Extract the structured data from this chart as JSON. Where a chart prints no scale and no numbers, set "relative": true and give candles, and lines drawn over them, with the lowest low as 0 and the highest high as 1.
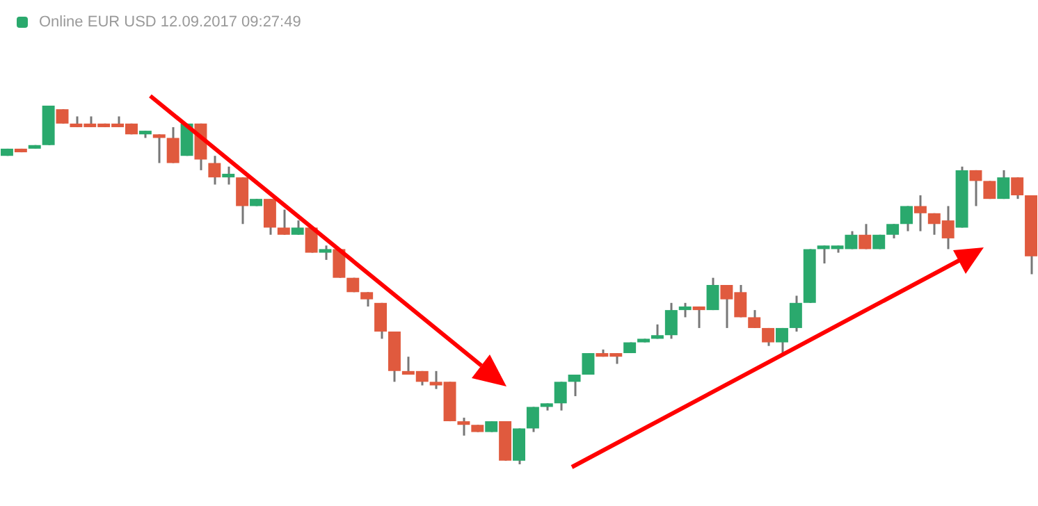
{
  "chart_data": {
    "type": "candlestick",
    "title": "Online EUR USD 12.09.2017 09:27:49",
    "relative": true,
    "categories": [
      null,
      null,
      null,
      null,
      null,
      null,
      null,
      null,
      null,
      null,
      null,
      null,
      null,
      null,
      null,
      null,
      null,
      null,
      null,
      null,
      null,
      null,
      null,
      null,
      null,
      null,
      null,
      null,
      null,
      null,
      null,
      null,
      null,
      null,
      null,
      null,
      null,
      null,
      null,
      null,
      null,
      null,
      null,
      null,
      null,
      null,
      null,
      null,
      null,
      null,
      null,
      null,
      null,
      null,
      null,
      null,
      null,
      null,
      null,
      null,
      null,
      null,
      null,
      null,
      null,
      null,
      null,
      null,
      null,
      null,
      null,
      null,
      null,
      null,
      null
    ],
    "ohlc": [
      [
        0.86,
        0.88,
        0.86,
        0.88
      ],
      [
        0.88,
        0.88,
        0.87,
        0.87
      ],
      [
        0.88,
        0.89,
        0.88,
        0.89
      ],
      [
        0.89,
        1,
        0.89,
        1
      ],
      [
        0.99,
        0.99,
        0.95,
        0.95
      ],
      [
        0.95,
        0.97,
        0.94,
        0.94
      ],
      [
        0.95,
        0.97,
        0.94,
        0.94
      ],
      [
        0.95,
        0.95,
        0.94,
        0.94
      ],
      [
        0.95,
        0.97,
        0.94,
        0.94
      ],
      [
        0.95,
        0.95,
        0.92,
        0.92
      ],
      [
        0.92,
        0.93,
        0.91,
        0.93
      ],
      [
        0.92,
        0.92,
        0.84,
        0.91
      ],
      [
        0.91,
        0.94,
        0.84,
        0.84
      ],
      [
        0.86,
        0.95,
        0.86,
        0.95
      ],
      [
        0.95,
        0.95,
        0.82,
        0.85
      ],
      [
        0.84,
        0.86,
        0.78,
        0.8
      ],
      [
        0.8,
        0.83,
        0.78,
        0.81
      ],
      [
        0.8,
        0.8,
        0.67,
        0.72
      ],
      [
        0.72,
        0.74,
        0.72,
        0.74
      ],
      [
        0.74,
        0.74,
        0.64,
        0.66
      ],
      [
        0.66,
        0.71,
        0.64,
        0.64
      ],
      [
        0.64,
        0.68,
        0.64,
        0.66
      ],
      [
        0.66,
        0.66,
        0.59,
        0.59
      ],
      [
        0.59,
        0.61,
        0.57,
        0.6
      ],
      [
        0.6,
        0.6,
        0.52,
        0.52
      ],
      [
        0.52,
        0.52,
        0.48,
        0.48
      ],
      [
        0.48,
        0.48,
        0.44,
        0.46
      ],
      [
        0.45,
        0.45,
        0.35,
        0.37
      ],
      [
        0.37,
        0.37,
        0.23,
        0.26
      ],
      [
        0.26,
        0.3,
        0.25,
        0.25
      ],
      [
        0.26,
        0.26,
        0.22,
        0.23
      ],
      [
        0.23,
        0.26,
        0.21,
        0.22
      ],
      [
        0.23,
        0.23,
        0.12,
        0.12
      ],
      [
        0.12,
        0.13,
        0.08,
        0.11
      ],
      [
        0.11,
        0.11,
        0.09,
        0.09
      ],
      [
        0.09,
        0.12,
        0.09,
        0.12
      ],
      [
        0.12,
        0.12,
        0.01,
        0.01
      ],
      [
        0.01,
        0.1,
        0,
        0.1
      ],
      [
        0.1,
        0.16,
        0.09,
        0.16
      ],
      [
        0.16,
        0.17,
        0.15,
        0.17
      ],
      [
        0.17,
        0.23,
        0.15,
        0.23
      ],
      [
        0.23,
        0.25,
        0.19,
        0.25
      ],
      [
        0.25,
        0.31,
        0.25,
        0.31
      ],
      [
        0.31,
        0.32,
        0.3,
        0.3
      ],
      [
        0.31,
        0.31,
        0.28,
        0.3
      ],
      [
        0.31,
        0.34,
        0.31,
        0.34
      ],
      [
        0.34,
        0.35,
        0.34,
        0.35
      ],
      [
        0.35,
        0.39,
        0.35,
        0.36
      ],
      [
        0.36,
        0.45,
        0.35,
        0.43
      ],
      [
        0.43,
        0.45,
        0.41,
        0.44
      ],
      [
        0.44,
        0.44,
        0.38,
        0.43
      ],
      [
        0.43,
        0.52,
        0.43,
        0.5
      ],
      [
        0.5,
        0.5,
        0.38,
        0.46
      ],
      [
        0.48,
        0.5,
        0.41,
        0.41
      ],
      [
        0.41,
        0.43,
        0.38,
        0.38
      ],
      [
        0.38,
        0.38,
        0.33,
        0.34
      ],
      [
        0.34,
        0.38,
        0.31,
        0.38
      ],
      [
        0.38,
        0.47,
        0.37,
        0.45
      ],
      [
        0.45,
        0.6,
        0.45,
        0.6
      ],
      [
        0.6,
        0.61,
        0.56,
        0.61
      ],
      [
        0.6,
        0.61,
        0.59,
        0.61
      ],
      [
        0.6,
        0.65,
        0.6,
        0.64
      ],
      [
        0.64,
        0.67,
        0.6,
        0.6
      ],
      [
        0.6,
        0.64,
        0.6,
        0.64
      ],
      [
        0.64,
        0.67,
        0.63,
        0.67
      ],
      [
        0.67,
        0.72,
        0.65,
        0.72
      ],
      [
        0.72,
        0.75,
        0.65,
        0.7
      ],
      [
        0.7,
        0.7,
        0.64,
        0.67
      ],
      [
        0.68,
        0.72,
        0.6,
        0.63
      ],
      [
        0.66,
        0.83,
        0.66,
        0.82
      ],
      [
        0.82,
        0.82,
        0.72,
        0.79
      ],
      [
        0.79,
        0.79,
        0.74,
        0.74
      ],
      [
        0.74,
        0.82,
        0.74,
        0.8
      ],
      [
        0.8,
        0.8,
        0.74,
        0.75
      ],
      [
        0.75,
        0.75,
        0.53,
        0.58
      ]
    ],
    "colors": [
      "#2aa96d",
      "#e05a3e",
      "#2aa96d",
      "#2aa96d",
      "#e05a3e",
      "#e05a3e",
      "#e05a3e",
      "#e05a3e",
      "#e05a3e",
      "#e05a3e",
      "#2aa96d",
      "#e05a3e",
      "#e05a3e",
      "#2aa96d",
      "#e05a3e",
      "#e05a3e",
      "#2aa96d",
      "#e05a3e",
      "#2aa96d",
      "#e05a3e",
      "#e05a3e",
      "#2aa96d",
      "#e05a3e",
      "#2aa96d",
      "#e05a3e",
      "#e05a3e",
      "#e05a3e",
      "#e05a3e",
      "#e05a3e",
      "#e05a3e",
      "#e05a3e",
      "#e05a3e",
      "#e05a3e",
      "#e05a3e",
      "#e05a3e",
      "#2aa96d",
      "#e05a3e",
      "#2aa96d",
      "#2aa96d",
      "#2aa96d",
      "#2aa96d",
      "#2aa96d",
      "#2aa96d",
      "#e05a3e",
      "#e05a3e",
      "#2aa96d",
      "#2aa96d",
      "#2aa96d",
      "#2aa96d",
      "#2aa96d",
      "#e05a3e",
      "#2aa96d",
      "#e05a3e",
      "#e05a3e",
      "#e05a3e",
      "#e05a3e",
      "#2aa96d",
      "#2aa96d",
      "#2aa96d",
      "#2aa96d",
      "#2aa96d",
      "#2aa96d",
      "#e05a3e",
      "#2aa96d",
      "#2aa96d",
      "#2aa96d",
      "#e05a3e",
      "#e05a3e",
      "#e05a3e",
      "#2aa96d",
      "#e05a3e",
      "#e05a3e",
      "#2aa96d",
      "#e05a3e",
      "#e05a3e"
    ]
  }
}
